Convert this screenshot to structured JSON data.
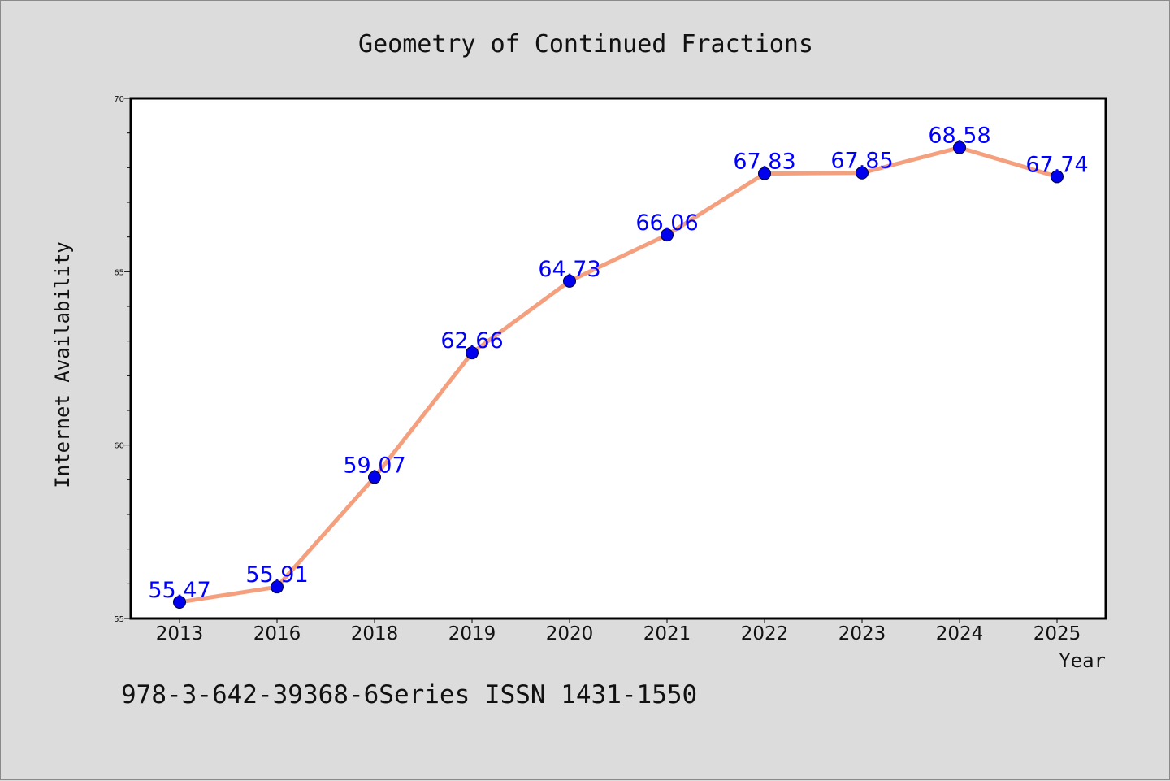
{
  "chart_data": {
    "type": "line",
    "title": "Geometry of Continued Fractions",
    "xlabel": "Year",
    "ylabel": "Internet Availability",
    "categories": [
      "2013",
      "2016",
      "2018",
      "2019",
      "2020",
      "2021",
      "2022",
      "2023",
      "2024",
      "2025"
    ],
    "values": [
      55.47,
      55.91,
      59.07,
      62.66,
      64.73,
      66.06,
      67.83,
      67.85,
      68.58,
      67.74
    ],
    "data_labels": [
      "55.47",
      "55.91",
      "59.07",
      "62.66",
      "64.73",
      "66.06",
      "67.83",
      "67.85",
      "68.58",
      "67.74"
    ],
    "ylim": [
      55,
      70
    ],
    "y_major_ticks": [
      55,
      60,
      65,
      70
    ],
    "y_tick_labels": [
      "55",
      "60",
      "65",
      "70"
    ],
    "grid": false,
    "legend": "none",
    "colors": {
      "line": "#f4a07e",
      "marker": "#0000ee",
      "label": "#0000ff",
      "background": "#dcdcdc",
      "plot_background": "#ffffff"
    }
  },
  "footer_text": "978-3-642-39368-6Series ISSN 1431-1550"
}
